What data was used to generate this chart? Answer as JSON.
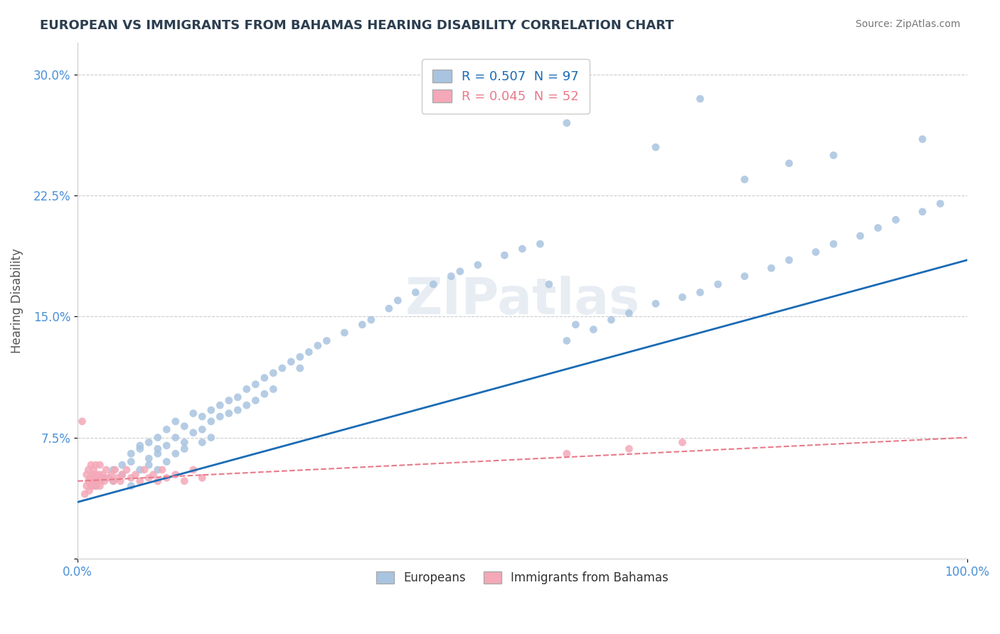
{
  "title": "EUROPEAN VS IMMIGRANTS FROM BAHAMAS HEARING DISABILITY CORRELATION CHART",
  "source": "Source: ZipAtlas.com",
  "xlabel": "",
  "ylabel": "Hearing Disability",
  "watermark": "ZIPatlas",
  "xlim": [
    0.0,
    1.0
  ],
  "ylim": [
    0.0,
    0.32
  ],
  "yticks": [
    0.0,
    0.075,
    0.15,
    0.225,
    0.3
  ],
  "ytick_labels": [
    "",
    "7.5%",
    "15.0%",
    "22.5%",
    "30.0%"
  ],
  "xtick_labels": [
    "0.0%",
    "100.0%"
  ],
  "legend_european": "R = 0.507  N = 97",
  "legend_bahamas": "R = 0.045  N = 52",
  "legend_label_european": "Europeans",
  "legend_label_bahamas": "Immigrants from Bahamas",
  "color_european": "#a8c4e0",
  "color_bahamas": "#f4a8b8",
  "line_color_european": "#1a6bb5",
  "line_color_bahamas": "#e87a8a",
  "title_color": "#2c3e50",
  "axis_color": "#4a90d9",
  "background_color": "#ffffff",
  "european_x": [
    0.02,
    0.03,
    0.04,
    0.04,
    0.05,
    0.05,
    0.06,
    0.06,
    0.06,
    0.07,
    0.07,
    0.07,
    0.08,
    0.08,
    0.08,
    0.09,
    0.09,
    0.09,
    0.09,
    0.1,
    0.1,
    0.1,
    0.11,
    0.11,
    0.11,
    0.12,
    0.12,
    0.12,
    0.13,
    0.13,
    0.14,
    0.14,
    0.14,
    0.15,
    0.15,
    0.15,
    0.16,
    0.16,
    0.17,
    0.17,
    0.18,
    0.18,
    0.19,
    0.19,
    0.2,
    0.2,
    0.21,
    0.21,
    0.22,
    0.22,
    0.23,
    0.24,
    0.25,
    0.25,
    0.26,
    0.27,
    0.28,
    0.3,
    0.32,
    0.33,
    0.35,
    0.36,
    0.38,
    0.4,
    0.42,
    0.43,
    0.45,
    0.48,
    0.5,
    0.52,
    0.53,
    0.55,
    0.56,
    0.58,
    0.6,
    0.62,
    0.65,
    0.68,
    0.7,
    0.72,
    0.75,
    0.78,
    0.8,
    0.83,
    0.85,
    0.88,
    0.9,
    0.92,
    0.95,
    0.97,
    0.55,
    0.65,
    0.7,
    0.75,
    0.8,
    0.85,
    0.95
  ],
  "european_y": [
    0.045,
    0.05,
    0.055,
    0.048,
    0.052,
    0.058,
    0.045,
    0.06,
    0.065,
    0.068,
    0.055,
    0.07,
    0.062,
    0.072,
    0.058,
    0.075,
    0.065,
    0.068,
    0.055,
    0.08,
    0.07,
    0.06,
    0.085,
    0.075,
    0.065,
    0.082,
    0.072,
    0.068,
    0.09,
    0.078,
    0.088,
    0.08,
    0.072,
    0.092,
    0.085,
    0.075,
    0.095,
    0.088,
    0.098,
    0.09,
    0.1,
    0.092,
    0.105,
    0.095,
    0.108,
    0.098,
    0.112,
    0.102,
    0.115,
    0.105,
    0.118,
    0.122,
    0.125,
    0.118,
    0.128,
    0.132,
    0.135,
    0.14,
    0.145,
    0.148,
    0.155,
    0.16,
    0.165,
    0.17,
    0.175,
    0.178,
    0.182,
    0.188,
    0.192,
    0.195,
    0.17,
    0.135,
    0.145,
    0.142,
    0.148,
    0.152,
    0.158,
    0.162,
    0.165,
    0.17,
    0.175,
    0.18,
    0.185,
    0.19,
    0.195,
    0.2,
    0.205,
    0.21,
    0.215,
    0.22,
    0.27,
    0.255,
    0.285,
    0.235,
    0.245,
    0.25,
    0.26
  ],
  "bahamas_x": [
    0.005,
    0.008,
    0.01,
    0.01,
    0.012,
    0.012,
    0.013,
    0.014,
    0.015,
    0.015,
    0.016,
    0.017,
    0.018,
    0.018,
    0.019,
    0.02,
    0.02,
    0.021,
    0.022,
    0.023,
    0.024,
    0.025,
    0.025,
    0.026,
    0.027,
    0.028,
    0.03,
    0.032,
    0.035,
    0.038,
    0.04,
    0.042,
    0.045,
    0.048,
    0.05,
    0.055,
    0.06,
    0.065,
    0.07,
    0.075,
    0.08,
    0.085,
    0.09,
    0.095,
    0.1,
    0.11,
    0.12,
    0.13,
    0.14,
    0.55,
    0.62,
    0.68
  ],
  "bahamas_y": [
    0.085,
    0.04,
    0.045,
    0.052,
    0.048,
    0.055,
    0.042,
    0.05,
    0.045,
    0.058,
    0.048,
    0.052,
    0.045,
    0.055,
    0.048,
    0.052,
    0.058,
    0.045,
    0.05,
    0.048,
    0.052,
    0.045,
    0.058,
    0.048,
    0.05,
    0.052,
    0.048,
    0.055,
    0.05,
    0.052,
    0.048,
    0.055,
    0.05,
    0.048,
    0.052,
    0.055,
    0.05,
    0.052,
    0.048,
    0.055,
    0.05,
    0.052,
    0.048,
    0.055,
    0.05,
    0.052,
    0.048,
    0.055,
    0.05,
    0.065,
    0.068,
    0.072
  ],
  "european_line_x": [
    0.0,
    1.0
  ],
  "european_line_y": [
    0.035,
    0.185
  ],
  "bahamas_line_x": [
    0.0,
    1.0
  ],
  "bahamas_line_y": [
    0.048,
    0.075
  ]
}
